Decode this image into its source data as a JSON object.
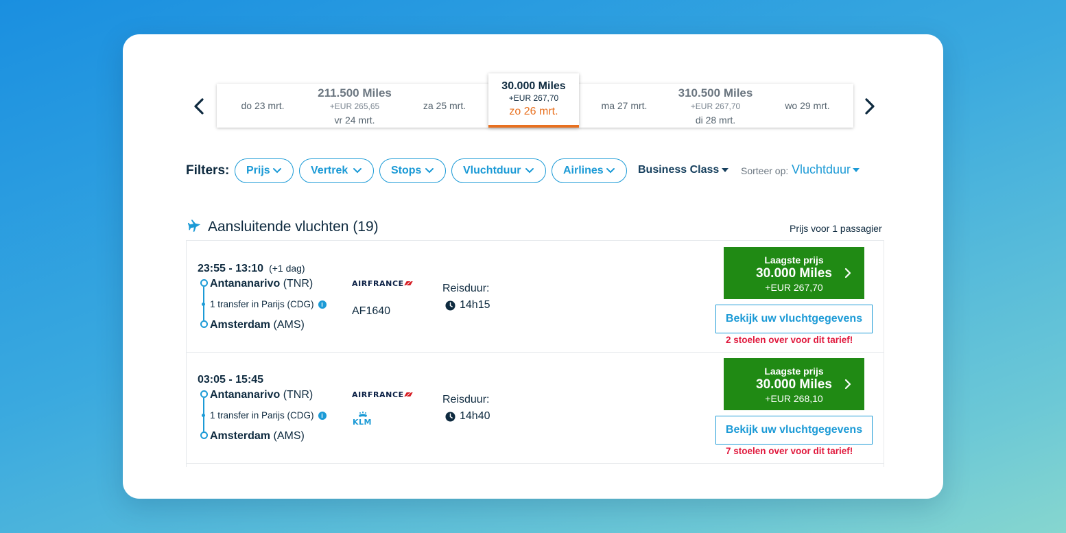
{
  "date_strip": {
    "cells": [
      {
        "day": "do 23 mrt.",
        "miles": "",
        "fee": ""
      },
      {
        "day": "vr 24 mrt.",
        "miles": "211.500 Miles",
        "fee": "+EUR 265,65"
      },
      {
        "day": "za 25 mrt.",
        "miles": "",
        "fee": ""
      },
      {
        "day": "zo 26 mrt.",
        "miles": "30.000 Miles",
        "fee": "+EUR 267,70",
        "selected": true
      },
      {
        "day": "ma 27 mrt.",
        "miles": "",
        "fee": ""
      },
      {
        "day": "di 28 mrt.",
        "miles": "310.500 Miles",
        "fee": "+EUR 267,70"
      },
      {
        "day": "wo 29 mrt.",
        "miles": "",
        "fee": ""
      }
    ],
    "prev_icon": "chevron-left-icon",
    "next_icon": "chevron-right-icon"
  },
  "filters": {
    "label": "Filters:",
    "pills": [
      "Prijs",
      "Vertrek",
      "Stops",
      "Vluchtduur",
      "Airlines"
    ],
    "cabin": "Business Class",
    "sort_label": "Sorteer op:",
    "sort_value": "Vluchtduur"
  },
  "results": {
    "title": "Aansluitende vluchten (19)",
    "price_note": "Prijs voor 1 passagier",
    "flights": [
      {
        "times": "23:55 - 13:10",
        "plus_day": "(+1 dag)",
        "origin_city": "Antananarivo",
        "origin_code": "(TNR)",
        "transfer": "1 transfer in Parijs (CDG)",
        "dest_city": "Amsterdam",
        "dest_code": "(AMS)",
        "airline": "AIRFRANCE",
        "flight_number": "AF1640",
        "duration_label": "Reisduur:",
        "duration": "14h15",
        "price_label": "Laagste prijs",
        "price_miles": "30.000 Miles",
        "price_fee": "+EUR 267,70",
        "details_label": "Bekijk uw vluchtgegevens",
        "seats_left": "2 stoelen over voor dit tarief!"
      },
      {
        "times": "03:05 - 15:45",
        "origin_city": "Antananarivo",
        "origin_code": "(TNR)",
        "transfer": "1 transfer in Parijs (CDG)",
        "dest_city": "Amsterdam",
        "dest_code": "(AMS)",
        "airline": "AIRFRANCE",
        "airline2": "KLM",
        "duration_label": "Reisduur:",
        "duration": "14h40",
        "price_label": "Laagste prijs",
        "price_miles": "30.000 Miles",
        "price_fee": "+EUR 268,10",
        "details_label": "Bekijk uw vluchtgegevens",
        "seats_left": "7 stoelen over voor dit tarief!"
      }
    ]
  },
  "colors": {
    "accent_blue": "#1b9ad6",
    "price_green": "#208a14",
    "selected_orange": "#e8701f",
    "warning_red": "#e0183c"
  }
}
